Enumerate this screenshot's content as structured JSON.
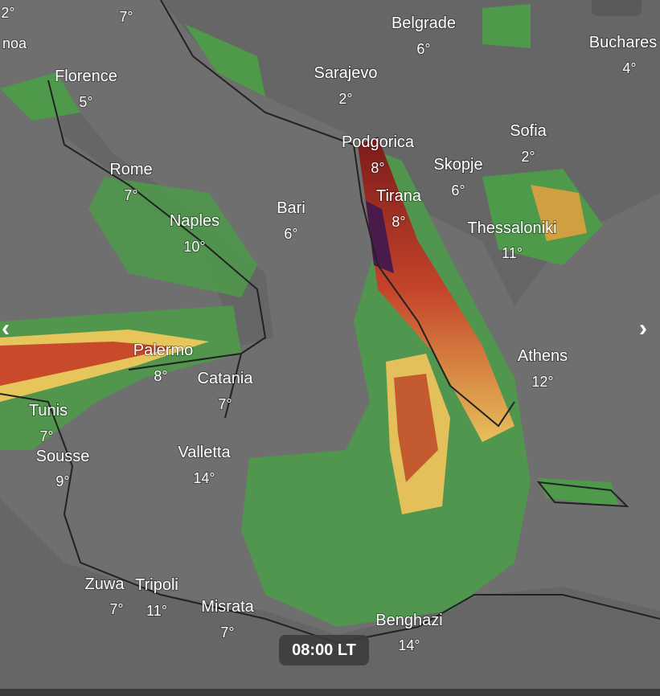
{
  "cities": [
    {
      "name": "Florence",
      "temp": "5°"
    },
    {
      "name": "Rome",
      "temp": "7°"
    },
    {
      "name": "Naples",
      "temp": "10°"
    },
    {
      "name": "Bari",
      "temp": "6°"
    },
    {
      "name": "Palermo",
      "temp": "8°"
    },
    {
      "name": "Catania",
      "temp": "7°"
    },
    {
      "name": "Tunis",
      "temp": "7°"
    },
    {
      "name": "Sousse",
      "temp": "9°"
    },
    {
      "name": "Valletta",
      "temp": "14°"
    },
    {
      "name": "Zuwa",
      "temp": "7°"
    },
    {
      "name": "Tripoli",
      "temp": "11°"
    },
    {
      "name": "Misrata",
      "temp": "7°"
    },
    {
      "name": "Benghazi",
      "temp": "14°"
    },
    {
      "name": "Belgrade",
      "temp": "6°"
    },
    {
      "name": "Sarajevo",
      "temp": "2°"
    },
    {
      "name": "Podgorica",
      "temp": "8°"
    },
    {
      "name": "Skopje",
      "temp": "6°"
    },
    {
      "name": "Tirana",
      "temp": "8°"
    },
    {
      "name": "Sofia",
      "temp": "2°"
    },
    {
      "name": "Thessaloniki",
      "temp": "11°"
    },
    {
      "name": "Athens",
      "temp": "12°"
    },
    {
      "name": "Buchares",
      "temp": "4°"
    }
  ],
  "partial_labels": [
    "2°",
    "noa",
    "7°"
  ],
  "time": "08:00 LT"
}
